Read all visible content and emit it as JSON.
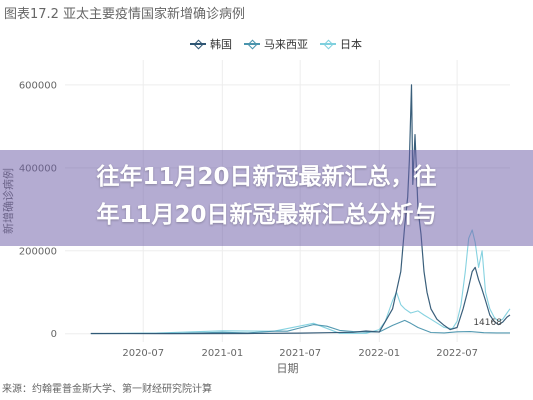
{
  "figure": {
    "title_prefix": "图表17.2",
    "title_main": "亚太主要疫情国家新增确诊病例",
    "source": "来源：约翰霍普金斯大学、第一财经研究院计算"
  },
  "overlay": {
    "line1": "往年11月20日新冠最新汇总，往",
    "line2": "年11月20日新冠最新汇总分析与"
  },
  "colors": {
    "korea": "#2f5674",
    "malaysia": "#4a94ad",
    "japan": "#7fd0de",
    "axis_text": "#666666",
    "grid": "#ededed",
    "overlay": "#7060a8"
  },
  "chart_data": {
    "type": "line",
    "title": "亚太主要疫情国家新增确诊病例",
    "xlabel": "日期",
    "ylabel": "新增确诊病例",
    "x_ticks": [
      "2020-07",
      "2021-01",
      "2021-07",
      "2022-01",
      "2022-07"
    ],
    "y_ticks": [
      0,
      200000,
      400000,
      600000
    ],
    "xlim": [
      "2020-01",
      "2022-11"
    ],
    "ylim": [
      -20000,
      660000
    ],
    "grid": true,
    "legend_position": "top",
    "annotation": "14168",
    "series": [
      {
        "name": "韩国",
        "color_key": "korea",
        "points": [
          [
            "2020-03",
            600
          ],
          [
            "2020-09",
            200
          ],
          [
            "2021-03",
            500
          ],
          [
            "2021-07",
            1500
          ],
          [
            "2021-09",
            2500
          ],
          [
            "2021-11",
            3500
          ],
          [
            "2021-12",
            6500
          ],
          [
            "2022-01",
            4000
          ],
          [
            "2022-02",
            60000
          ],
          [
            "2022-02-20",
            150000
          ],
          [
            "2022-03-01",
            260000
          ],
          [
            "2022-03-08",
            330000
          ],
          [
            "2022-03-12",
            420000
          ],
          [
            "2022-03-17",
            600000
          ],
          [
            "2022-03-20",
            360000
          ],
          [
            "2022-03-25",
            480000
          ],
          [
            "2022-04-01",
            300000
          ],
          [
            "2022-04-08",
            240000
          ],
          [
            "2022-04-15",
            150000
          ],
          [
            "2022-04-22",
            100000
          ],
          [
            "2022-05-01",
            60000
          ],
          [
            "2022-05-15",
            35000
          ],
          [
            "2022-06-01",
            20000
          ],
          [
            "2022-06-15",
            10000
          ],
          [
            "2022-07-01",
            15000
          ],
          [
            "2022-07-15",
            60000
          ],
          [
            "2022-07-25",
            100000
          ],
          [
            "2022-08-05",
            150000
          ],
          [
            "2022-08-12",
            160000
          ],
          [
            "2022-08-20",
            130000
          ],
          [
            "2022-08-27",
            110000
          ],
          [
            "2022-09-05",
            80000
          ],
          [
            "2022-09-15",
            45000
          ],
          [
            "2022-09-25",
            30000
          ],
          [
            "2022-10-05",
            22000
          ],
          [
            "2022-10-15",
            28000
          ],
          [
            "2022-10-25",
            40000
          ],
          [
            "2022-11-01",
            45000
          ]
        ]
      },
      {
        "name": "马来西亚",
        "color_key": "malaysia",
        "points": [
          [
            "2020-03",
            300
          ],
          [
            "2020-10",
            1000
          ],
          [
            "2021-01",
            3500
          ],
          [
            "2021-03",
            2000
          ],
          [
            "2021-05",
            6000
          ],
          [
            "2021-06",
            6000
          ],
          [
            "2021-07",
            14000
          ],
          [
            "2021-08",
            22000
          ],
          [
            "2021-09",
            18000
          ],
          [
            "2021-10",
            8000
          ],
          [
            "2021-11",
            5000
          ],
          [
            "2021-12",
            4000
          ],
          [
            "2022-01",
            4000
          ],
          [
            "2022-02",
            20000
          ],
          [
            "2022-03-01",
            32000
          ],
          [
            "2022-03-15",
            25000
          ],
          [
            "2022-04-01",
            15000
          ],
          [
            "2022-05-01",
            3000
          ],
          [
            "2022-06-01",
            2000
          ],
          [
            "2022-07-01",
            4500
          ],
          [
            "2022-08-01",
            5000
          ],
          [
            "2022-09-01",
            2500
          ],
          [
            "2022-10-01",
            2000
          ],
          [
            "2022-11-01",
            2000
          ]
        ]
      },
      {
        "name": "日本",
        "color_key": "japan",
        "points": [
          [
            "2020-04",
            400
          ],
          [
            "2020-08",
            1500
          ],
          [
            "2021-01",
            7000
          ],
          [
            "2021-05",
            6000
          ],
          [
            "2021-08",
            25000
          ],
          [
            "2021-10",
            1000
          ],
          [
            "2021-12",
            1000
          ],
          [
            "2022-01",
            10000
          ],
          [
            "2022-01-15",
            30000
          ],
          [
            "2022-02-01",
            80000
          ],
          [
            "2022-02-10",
            100000
          ],
          [
            "2022-02-20",
            70000
          ],
          [
            "2022-03-01",
            60000
          ],
          [
            "2022-03-15",
            50000
          ],
          [
            "2022-04-01",
            55000
          ],
          [
            "2022-04-15",
            45000
          ],
          [
            "2022-05-01",
            35000
          ],
          [
            "2022-06-01",
            15000
          ],
          [
            "2022-06-20",
            12000
          ],
          [
            "2022-07-01",
            30000
          ],
          [
            "2022-07-10",
            70000
          ],
          [
            "2022-07-20",
            150000
          ],
          [
            "2022-07-28",
            230000
          ],
          [
            "2022-08-05",
            250000
          ],
          [
            "2022-08-12",
            220000
          ],
          [
            "2022-08-20",
            160000
          ],
          [
            "2022-08-28",
            200000
          ],
          [
            "2022-09-05",
            100000
          ],
          [
            "2022-09-15",
            60000
          ],
          [
            "2022-09-25",
            40000
          ],
          [
            "2022-10-05",
            30000
          ],
          [
            "2022-10-15",
            35000
          ],
          [
            "2022-10-25",
            50000
          ],
          [
            "2022-11-01",
            60000
          ]
        ]
      }
    ]
  }
}
